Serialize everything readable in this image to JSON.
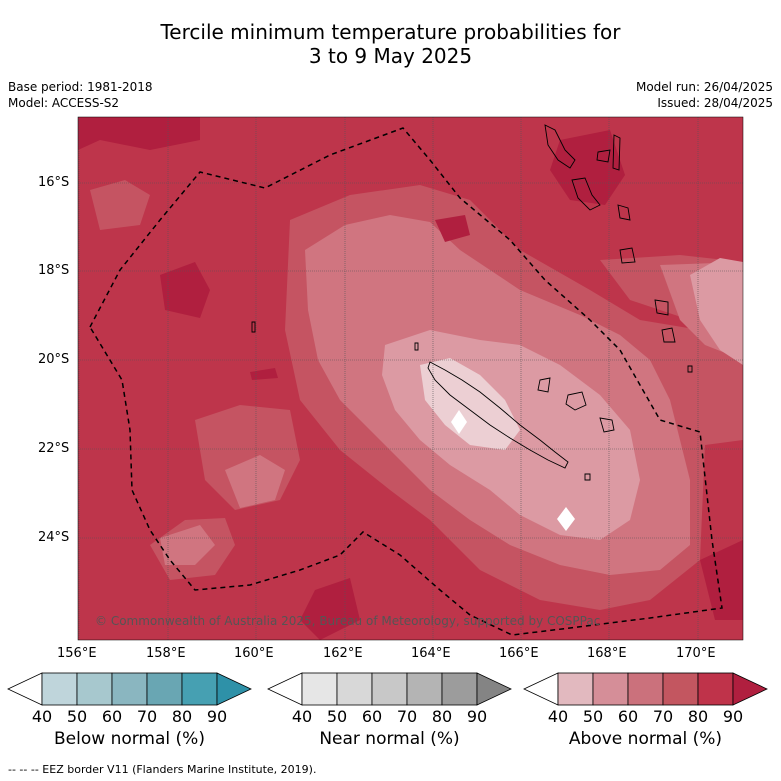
{
  "title_line1": "Tercile minimum temperature probabilities for",
  "title_line2": "3 to 9 May 2025",
  "base_period": "Base period: 1981-2018",
  "model": "Model: ACCESS-S2",
  "model_run": "Model run: 26/04/2025",
  "issued": "Issued: 28/04/2025",
  "map": {
    "lon_ticks": [
      "156°E",
      "158°E",
      "160°E",
      "162°E",
      "164°E",
      "166°E",
      "168°E",
      "170°E"
    ],
    "lat_ticks": [
      "16°S",
      "18°S",
      "20°S",
      "22°S",
      "24°S"
    ],
    "copyright": "© Commonwealth of Australia 2025, Bureau of Meteorology, supported by COSPPac",
    "colors": {
      "above_90": "#b01f3f",
      "above_80": "#be354b",
      "above_70": "#c55462",
      "above_60": "#d07580",
      "above_50": "#dc9aa3",
      "above_40": "#eccfd3",
      "near": "#ffffff",
      "eez": "#000000"
    }
  },
  "colorbars": [
    {
      "label": "Below normal (%)",
      "ticks": [
        "40",
        "50",
        "60",
        "70",
        "80",
        "90"
      ],
      "colors": [
        "#ffffff",
        "#bfd5db",
        "#a7c8ce",
        "#8ab6c0",
        "#69a6b3",
        "#46a0b2",
        "#2e91a8"
      ]
    },
    {
      "label": "Near normal (%)",
      "ticks": [
        "40",
        "50",
        "60",
        "70",
        "80",
        "90"
      ],
      "colors": [
        "#ffffff",
        "#e6e6e6",
        "#d8d8d8",
        "#c8c8c8",
        "#b4b4b4",
        "#9c9c9c",
        "#848484"
      ]
    },
    {
      "label": "Above normal (%)",
      "ticks": [
        "40",
        "50",
        "60",
        "70",
        "80",
        "90"
      ],
      "colors": [
        "#ffffff",
        "#e2b9bf",
        "#d58e98",
        "#cb717c",
        "#c35660",
        "#bf334a",
        "#b01f3f"
      ]
    }
  ],
  "footer": "--  --  -- EEZ border V11 (Flanders Marine Institute, 2019)."
}
